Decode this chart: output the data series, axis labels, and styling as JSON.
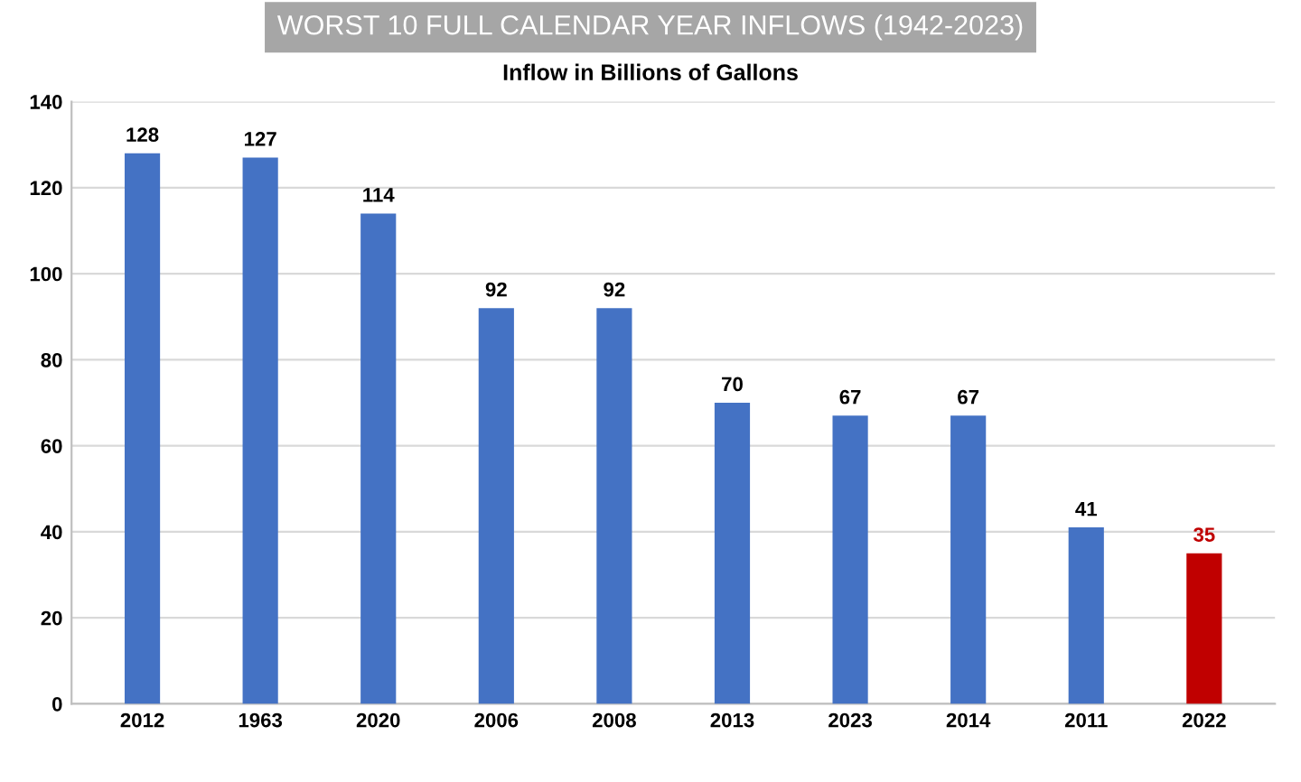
{
  "chart_data": {
    "type": "bar",
    "title": "WORST 10 FULL CALENDAR YEAR INFLOWS (1942-2023)",
    "subtitle": "Inflow in Billions of Gallons",
    "categories": [
      "2012",
      "1963",
      "2020",
      "2006",
      "2008",
      "2013",
      "2023",
      "2014",
      "2011",
      "2022"
    ],
    "values": [
      128,
      127,
      114,
      92,
      92,
      70,
      67,
      67,
      41,
      35
    ],
    "colors": [
      "#4472c4",
      "#4472c4",
      "#4472c4",
      "#4472c4",
      "#4472c4",
      "#4472c4",
      "#4472c4",
      "#4472c4",
      "#4472c4",
      "#c00000"
    ],
    "ylim": [
      0,
      140
    ],
    "yticks": [
      0,
      20,
      40,
      60,
      80,
      100,
      120,
      140
    ],
    "grid": "y",
    "data_labels": true,
    "legend": false
  }
}
